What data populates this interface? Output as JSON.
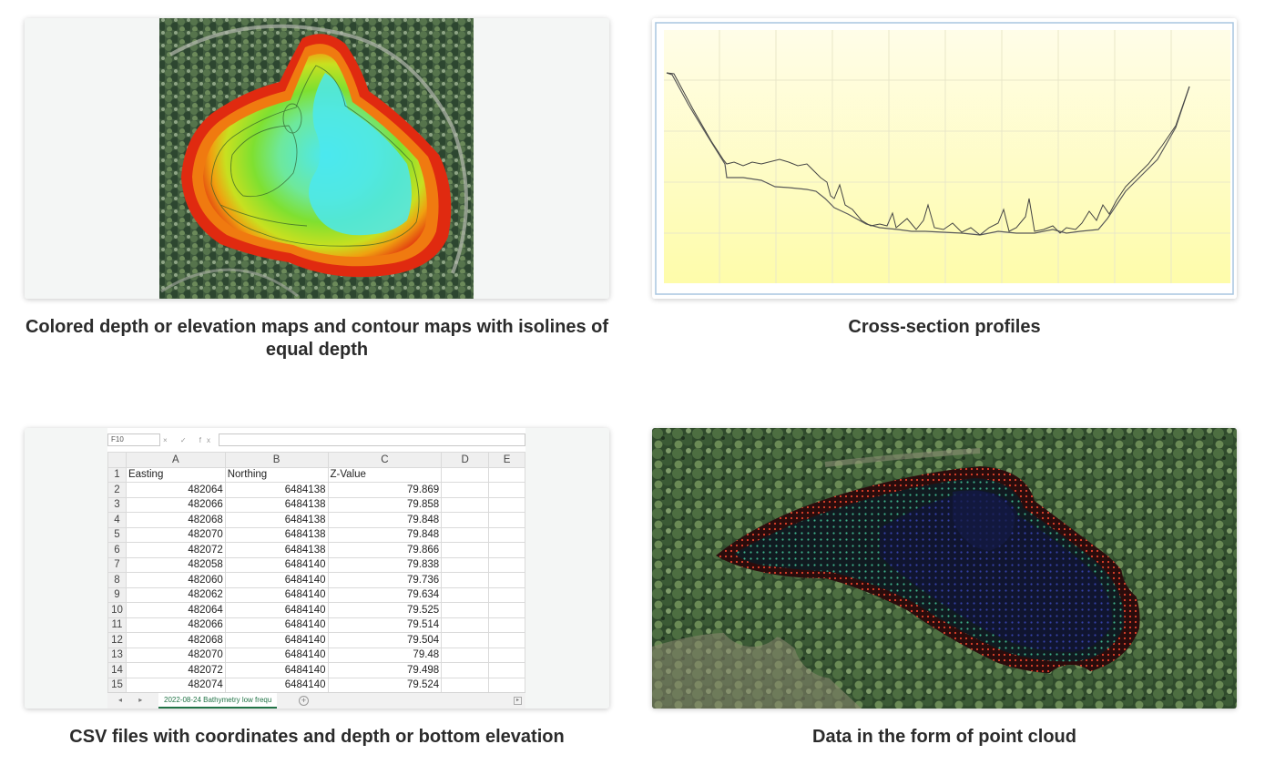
{
  "captions": {
    "map": "Colored depth or elevation maps and contour maps with isolines of equal depth",
    "cross": "Cross-section profiles",
    "csv": "CSV files with coordinates and depth or bottom elevation",
    "cloud": "Data in the form of point cloud"
  },
  "spreadsheet": {
    "name_box": "F10",
    "fx_icons": "× ✓ fx",
    "columns": [
      "A",
      "B",
      "C",
      "D",
      "E"
    ],
    "header_row": {
      "row": "1",
      "a": "Easting",
      "b": "Northing",
      "c": "Z-Value"
    },
    "rows": [
      {
        "row": "2",
        "easting": "482064",
        "northing": "6484138",
        "z": "79.869"
      },
      {
        "row": "3",
        "easting": "482066",
        "northing": "6484138",
        "z": "79.858"
      },
      {
        "row": "4",
        "easting": "482068",
        "northing": "6484138",
        "z": "79.848"
      },
      {
        "row": "5",
        "easting": "482070",
        "northing": "6484138",
        "z": "79.848"
      },
      {
        "row": "6",
        "easting": "482072",
        "northing": "6484138",
        "z": "79.866"
      },
      {
        "row": "7",
        "easting": "482058",
        "northing": "6484140",
        "z": "79.838"
      },
      {
        "row": "8",
        "easting": "482060",
        "northing": "6484140",
        "z": "79.736"
      },
      {
        "row": "9",
        "easting": "482062",
        "northing": "6484140",
        "z": "79.634"
      },
      {
        "row": "10",
        "easting": "482064",
        "northing": "6484140",
        "z": "79.525"
      },
      {
        "row": "11",
        "easting": "482066",
        "northing": "6484140",
        "z": "79.514"
      },
      {
        "row": "12",
        "easting": "482068",
        "northing": "6484140",
        "z": "79.504"
      },
      {
        "row": "13",
        "easting": "482070",
        "northing": "6484140",
        "z": "79.48"
      },
      {
        "row": "14",
        "easting": "482072",
        "northing": "6484140",
        "z": "79.498"
      },
      {
        "row": "15",
        "easting": "482074",
        "northing": "6484140",
        "z": "79.524"
      }
    ],
    "sheet_tab": "2022-08-24 Bathymetry low frequ",
    "add_sheet": "+",
    "nav_arrows": "◂ ▸",
    "scroll_arrow": "▸"
  },
  "colors": {
    "excel_green": "#217346",
    "depth_deep": "#4be8ef",
    "depth_mid": "#7fe030",
    "depth_shallow": "#f07a10",
    "depth_edge": "#e02a10",
    "profile_line": "#555555",
    "profile_bg_top": "#fffde8",
    "profile_bg_bottom": "#fefcaa"
  }
}
